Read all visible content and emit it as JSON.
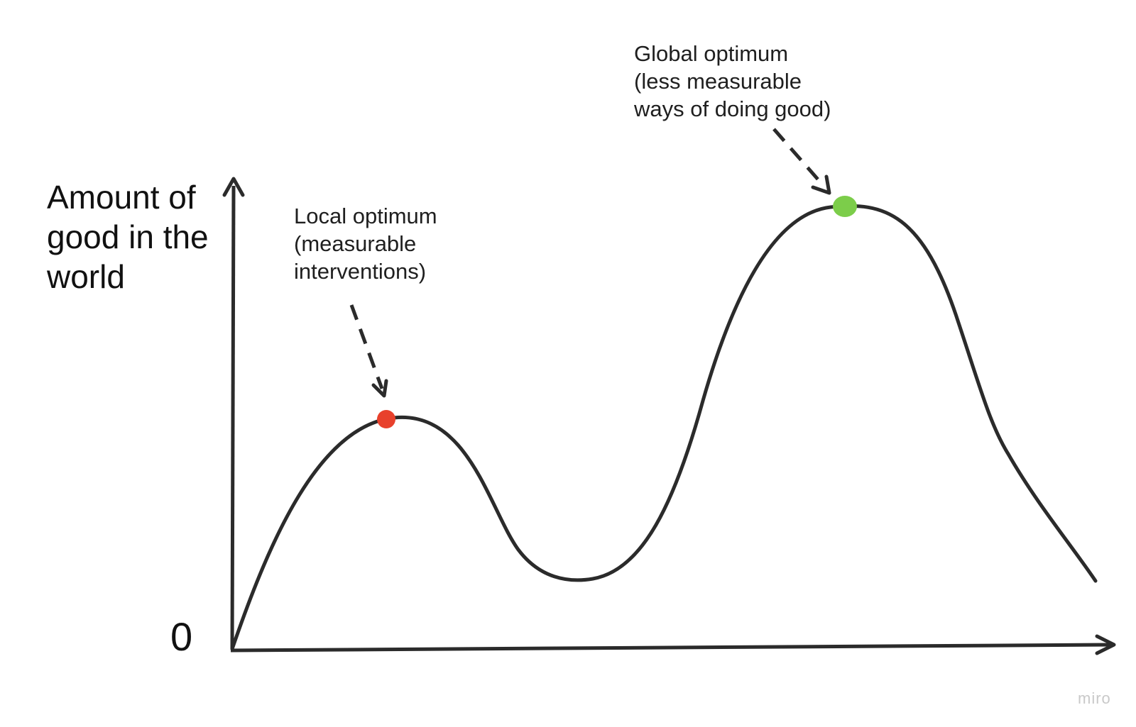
{
  "diagram": {
    "y_axis_label_lines": [
      "Amount of",
      "good in the",
      "world"
    ],
    "origin_label": "0",
    "local_optimum": {
      "lines": [
        "Local optimum",
        "(measurable",
        "interventions)"
      ],
      "marker_color": "#e8412c"
    },
    "global_optimum": {
      "lines": [
        "Global optimum",
        "(less measurable",
        "ways of doing good)"
      ],
      "marker_color": "#7ccd4a"
    },
    "curve_color": "#2b2b2b",
    "watermark": "miro"
  }
}
